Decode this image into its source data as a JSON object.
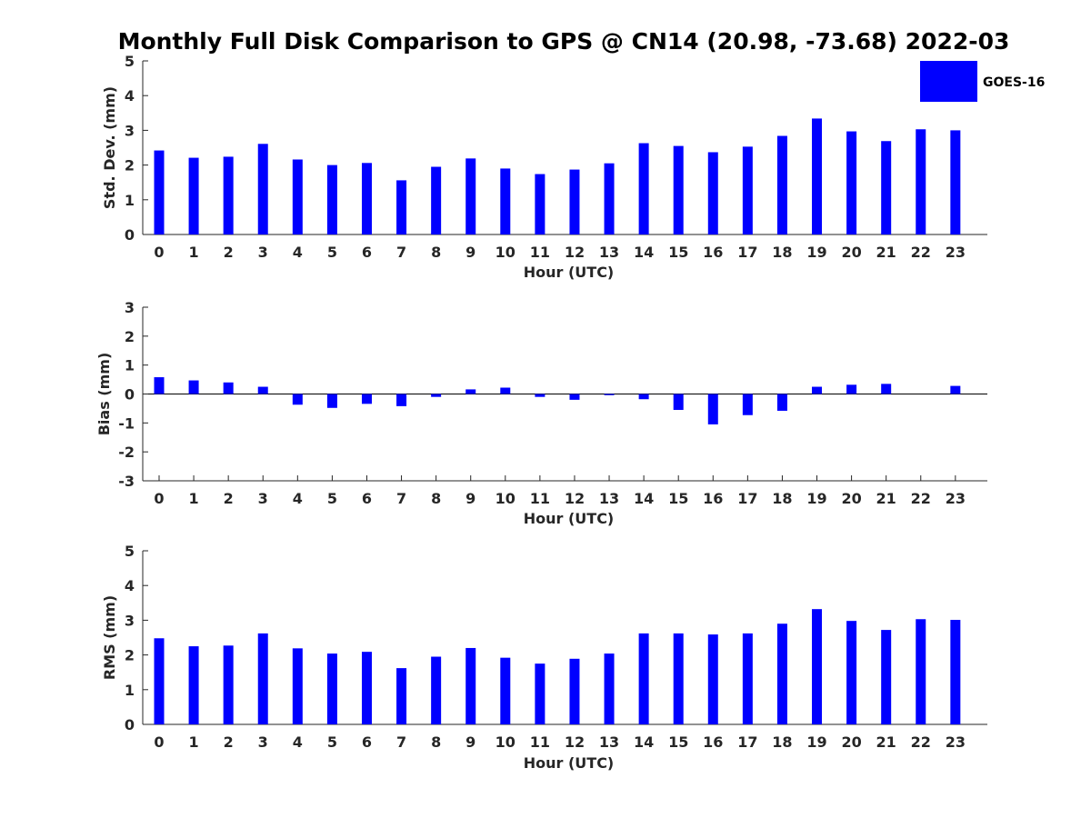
{
  "figure_title": "Monthly Full Disk Comparison to GPS @ CN14 (20.98, -73.68) 2022-03",
  "colors": {
    "bar": "#0000ff",
    "axis": "#262626"
  },
  "legend": {
    "label": "GOES-16",
    "placement": "top-right"
  },
  "chart_data": [
    {
      "type": "bar",
      "title": "Monthly Full Disk Comparison to GPS @ CN14 (20.98, -73.68) 2022-03",
      "xlabel": "Hour (UTC)",
      "ylabel": "Std. Dev. (mm)",
      "ylim": [
        0,
        5
      ],
      "yticks": [
        0,
        1,
        2,
        3,
        4,
        5
      ],
      "categories": [
        "0",
        "1",
        "2",
        "3",
        "4",
        "5",
        "6",
        "7",
        "8",
        "9",
        "10",
        "11",
        "12",
        "13",
        "14",
        "15",
        "16",
        "17",
        "18",
        "19",
        "20",
        "21",
        "22",
        "23"
      ],
      "series": [
        {
          "name": "GOES-16",
          "values": [
            2.42,
            2.21,
            2.24,
            2.61,
            2.16,
            2.0,
            2.06,
            1.56,
            1.95,
            2.19,
            1.9,
            1.74,
            1.87,
            2.05,
            2.63,
            2.55,
            2.37,
            2.53,
            2.84,
            3.34,
            2.97,
            2.69,
            3.03,
            3.0
          ]
        }
      ],
      "grid": false
    },
    {
      "type": "bar",
      "title": "",
      "xlabel": "Hour (UTC)",
      "ylabel": "Bias (mm)",
      "ylim": [
        -3,
        3
      ],
      "yticks": [
        -3,
        -2,
        -1,
        0,
        1,
        2,
        3
      ],
      "categories": [
        "0",
        "1",
        "2",
        "3",
        "4",
        "5",
        "6",
        "7",
        "8",
        "9",
        "10",
        "11",
        "12",
        "13",
        "14",
        "15",
        "16",
        "17",
        "18",
        "19",
        "20",
        "21",
        "22",
        "23"
      ],
      "series": [
        {
          "name": "GOES-16",
          "values": [
            0.58,
            0.47,
            0.4,
            0.25,
            -0.37,
            -0.48,
            -0.34,
            -0.42,
            -0.1,
            0.16,
            0.22,
            -0.1,
            -0.2,
            -0.04,
            -0.18,
            -0.55,
            -1.05,
            -0.73,
            -0.58,
            0.25,
            0.32,
            0.35,
            0.0,
            0.28
          ]
        }
      ],
      "grid": false
    },
    {
      "type": "bar",
      "title": "",
      "xlabel": "Hour (UTC)",
      "ylabel": "RMS (mm)",
      "ylim": [
        0,
        5
      ],
      "yticks": [
        0,
        1,
        2,
        3,
        4,
        5
      ],
      "categories": [
        "0",
        "1",
        "2",
        "3",
        "4",
        "5",
        "6",
        "7",
        "8",
        "9",
        "10",
        "11",
        "12",
        "13",
        "14",
        "15",
        "16",
        "17",
        "18",
        "19",
        "20",
        "21",
        "22",
        "23"
      ],
      "series": [
        {
          "name": "GOES-16",
          "values": [
            2.48,
            2.25,
            2.27,
            2.62,
            2.19,
            2.04,
            2.09,
            1.62,
            1.95,
            2.2,
            1.92,
            1.75,
            1.89,
            2.04,
            2.62,
            2.62,
            2.59,
            2.62,
            2.9,
            3.32,
            2.98,
            2.72,
            3.03,
            3.01
          ]
        }
      ],
      "grid": false
    }
  ]
}
